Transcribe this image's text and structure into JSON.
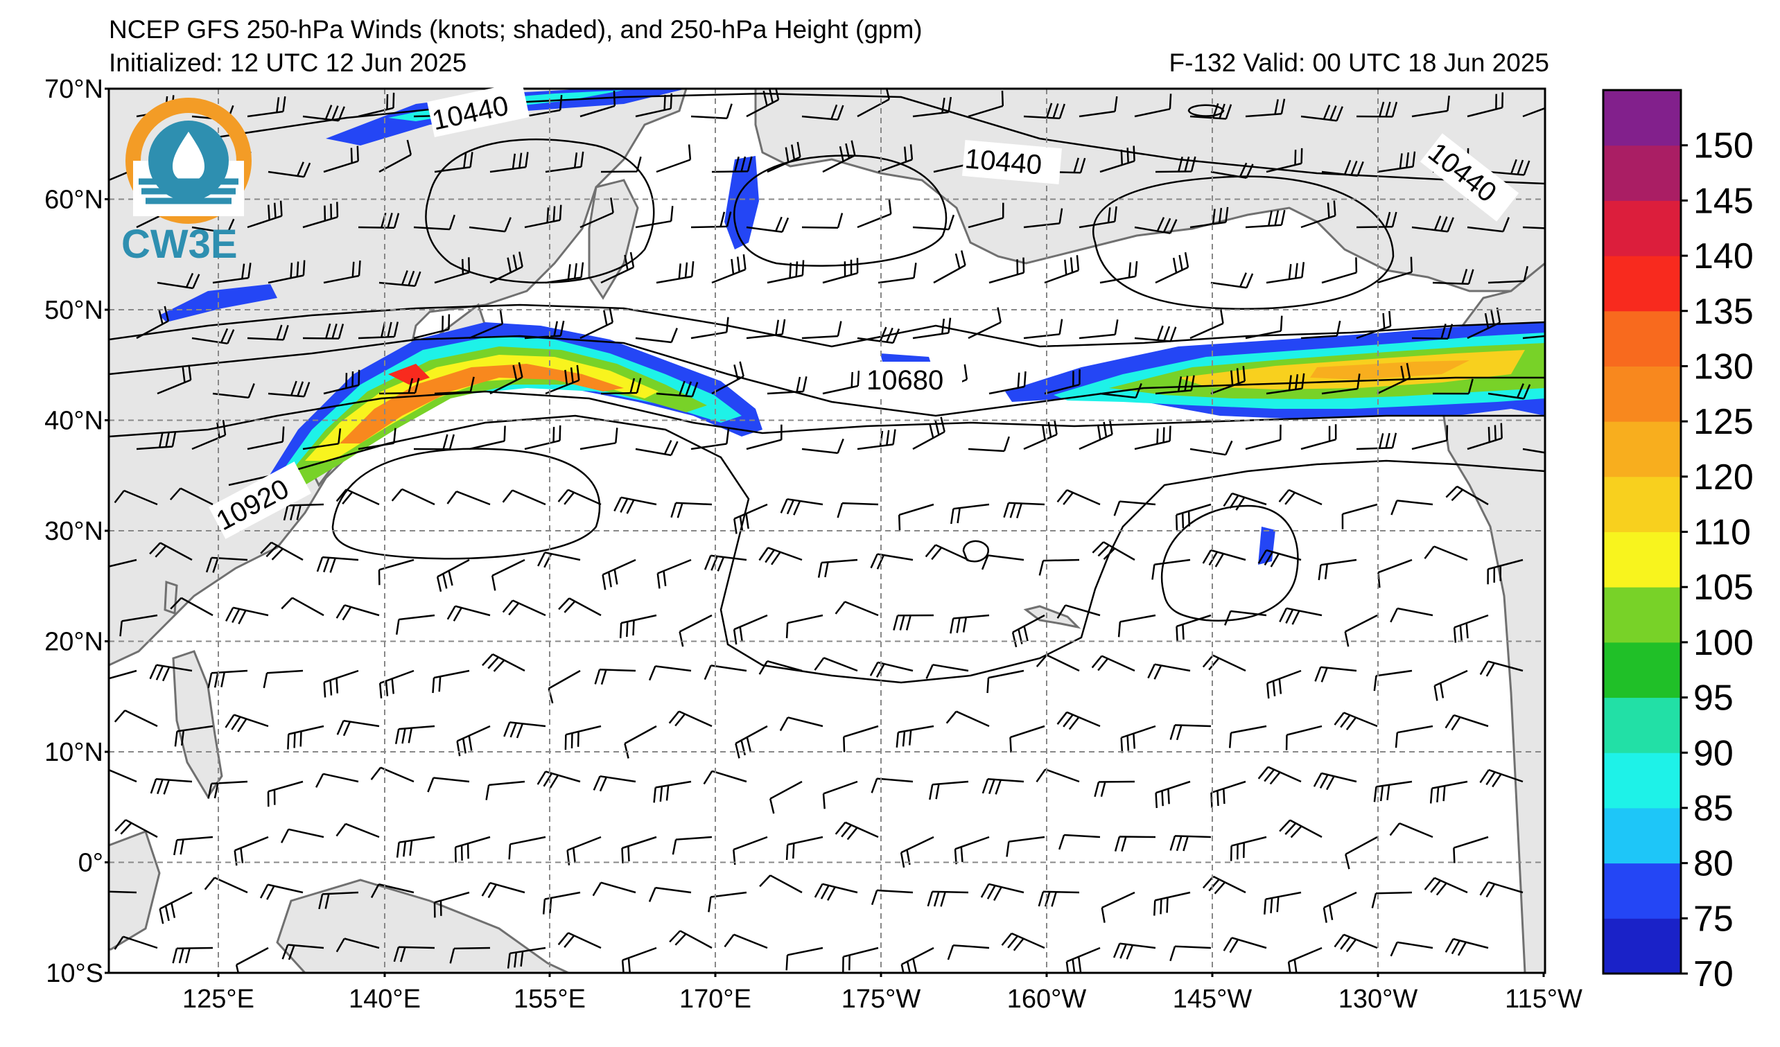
{
  "header": {
    "title": "NCEP GFS 250-hPa Winds (knots; shaded), and 250-hPa Height (gpm)",
    "initialized": "Initialized: 12 UTC 12 Jun 2025",
    "valid": "F-132  Valid: 00 UTC 18 Jun 2025"
  },
  "logo": {
    "text": "CW3E",
    "colors": {
      "orange": "#f39c26",
      "teal": "#2e8fb0"
    }
  },
  "map": {
    "lon_range": [
      112,
      245
    ],
    "lat_range": [
      -10,
      70
    ],
    "lat_ticks": [
      "70°N",
      "60°N",
      "50°N",
      "40°N",
      "30°N",
      "20°N",
      "10°N",
      "0°",
      "10°S"
    ],
    "lon_ticks": [
      "125°E",
      "140°E",
      "155°E",
      "170°E",
      "175°W",
      "160°W",
      "145°W",
      "130°W",
      "115°W"
    ],
    "land_color": "#e6e6e6",
    "grid": "dashed"
  },
  "contours": {
    "labels": [
      "10440",
      "10440",
      "10440",
      "10680",
      "10920"
    ]
  },
  "colorbar": {
    "levels": [
      "70",
      "75",
      "80",
      "85",
      "90",
      "95",
      "100",
      "105",
      "110",
      "120",
      "125",
      "130",
      "135",
      "140",
      "145",
      "150"
    ],
    "colors": [
      "#1a22c8",
      "#2446f5",
      "#1ec6f8",
      "#1ef2e8",
      "#22e0a6",
      "#20c028",
      "#78d228",
      "#f8f41e",
      "#f8d01e",
      "#f8ae1e",
      "#f8881e",
      "#f86a1e",
      "#f82a1e",
      "#dc1e3c",
      "#aa1e64",
      "#82208c"
    ]
  }
}
